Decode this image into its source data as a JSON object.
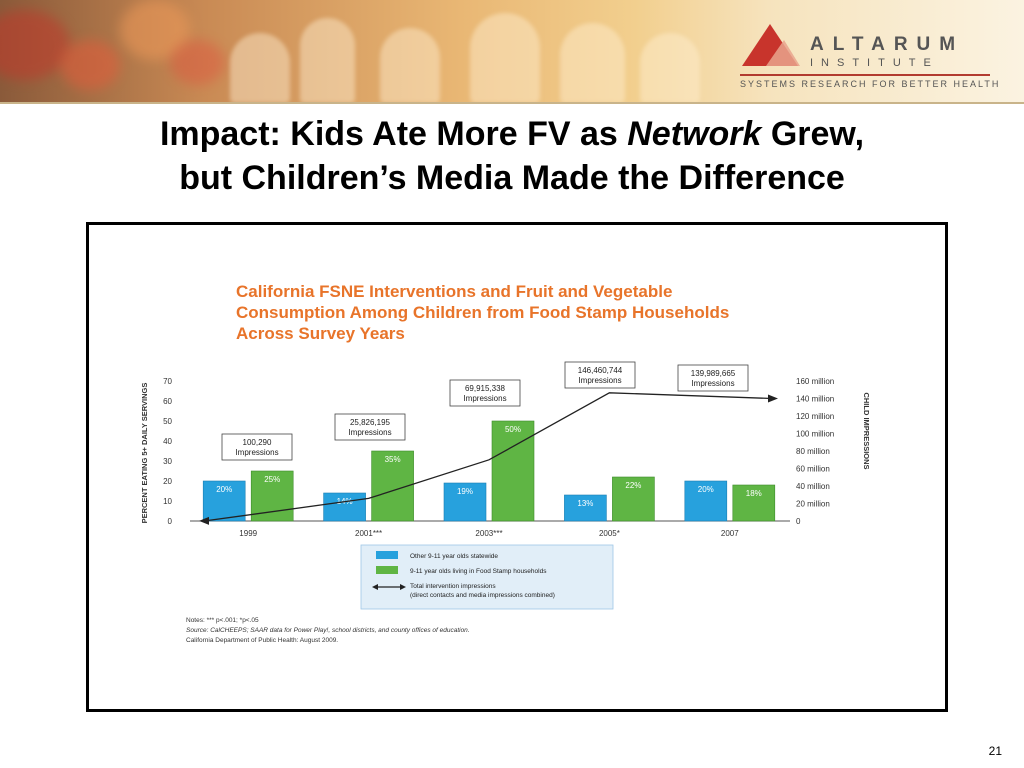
{
  "header": {
    "logo_name": "ALTARUM",
    "logo_sub": "INSTITUTE",
    "logo_tagline": "SYSTEMS RESEARCH FOR BETTER HEALTH"
  },
  "slide": {
    "title_line1_pre": "Impact: Kids Ate More FV as ",
    "title_line1_em": "Network",
    "title_line1_post": " Grew,",
    "title_line2": "but Children’s Media Made the Difference",
    "page_number": "21"
  },
  "colors": {
    "blue": "#27a1dd",
    "green": "#5fb544",
    "accent": "#e8742a"
  },
  "chart_data": {
    "type": "bar",
    "title": "California FSNE Interventions and Fruit and Vegetable Consumption Among Children from Food Stamp Households Across Survey Years",
    "categories": [
      "1999",
      "2001***",
      "2003***",
      "2005*",
      "2007"
    ],
    "ylabel": "PERCENT EATING 5+ DAILY SERVINGS",
    "ylim": [
      0,
      70
    ],
    "yticks": [
      "0",
      "10",
      "20",
      "30",
      "40",
      "50",
      "60",
      "70"
    ],
    "y2label": "CHILD IMPRESSIONS",
    "y2lim": [
      0,
      160
    ],
    "y2ticks": [
      "0",
      "20 million",
      "40 million",
      "60 million",
      "80 million",
      "100 million",
      "120 million",
      "140 million",
      "160 million"
    ],
    "series": [
      {
        "name": "Other 9-11 year olds statewide",
        "values": [
          20,
          14,
          19,
          13,
          20
        ],
        "labels": [
          "20%",
          "14%",
          "19%",
          "13%",
          "20%"
        ]
      },
      {
        "name": "9-11 year olds living in Food Stamp households",
        "values": [
          25,
          35,
          50,
          22,
          18
        ],
        "labels": [
          "25%",
          "35%",
          "50%",
          "22%",
          "18%"
        ]
      }
    ],
    "line": {
      "name": "Total intervention impressions",
      "name_line2": "(direct contacts and media impressions combined)",
      "values_millions": [
        0.1,
        25.8,
        69.9,
        146.5,
        140.0
      ],
      "labels": [
        [
          "100,290",
          "Impressions"
        ],
        [
          "25,826,195",
          "Impressions"
        ],
        [
          "69,915,338",
          "Impressions"
        ],
        [
          "146,460,744",
          "Impressions"
        ],
        [
          "139,989,665",
          "Impressions"
        ]
      ]
    },
    "notes": [
      "Notes: *** p<.001; *p<.05",
      "Source: CalCHEEPS; SAAR data for Power Play!, school districts, and county offices of education.",
      "California Department of Public Health: August 2009."
    ]
  }
}
